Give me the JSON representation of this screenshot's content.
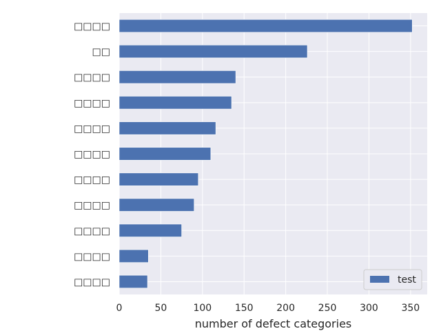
{
  "chart_data": {
    "type": "bar",
    "orientation": "horizontal",
    "title": "",
    "xlabel": "number of defect categories",
    "ylabel": "",
    "xlim": [
      0,
      370
    ],
    "x_ticks": [
      0,
      50,
      100,
      150,
      200,
      250,
      300,
      350
    ],
    "grid": true,
    "legend": {
      "position": "bottom-right",
      "entries": [
        "test"
      ]
    },
    "categories": [
      "□□□□",
      "□□",
      "□□□□",
      "□□□□",
      "□□□□",
      "□□□□",
      "□□□□",
      "□□□□",
      "□□□□",
      "□□□□",
      "□□□□"
    ],
    "series": [
      {
        "name": "test",
        "color": "#4c72b0",
        "values": [
          352,
          226,
          140,
          135,
          116,
          110,
          95,
          90,
          75,
          35,
          34
        ]
      }
    ]
  },
  "colors": {
    "plot_background": "#eaeaf2",
    "grid": "#ffffff",
    "bar": "#4c72b0",
    "text": "#262626"
  }
}
